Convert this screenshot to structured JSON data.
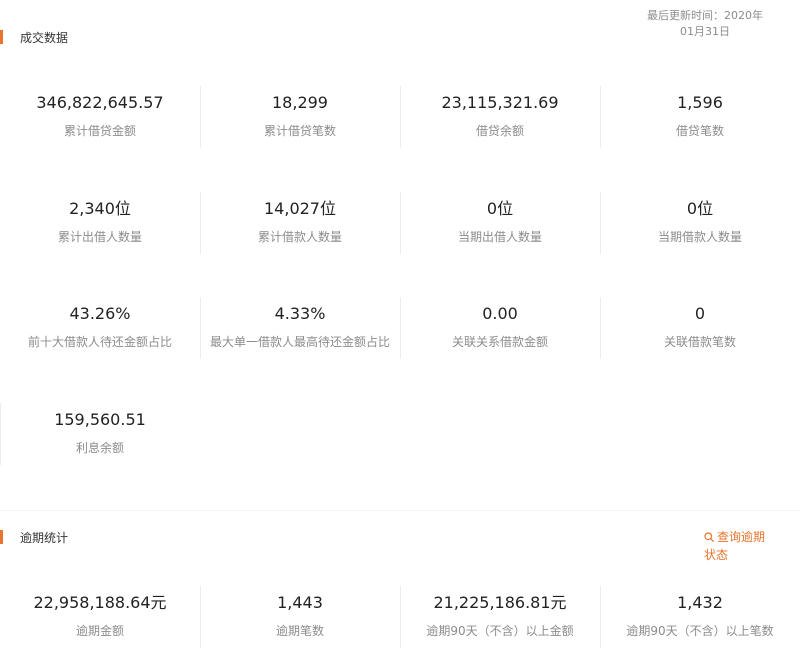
{
  "update_time": {
    "label": "最后更新时间：2020年",
    "date": "01月31日"
  },
  "transactions": {
    "title": "成交数据",
    "rows": [
      [
        {
          "value": "346,822,645.57",
          "label": "累计借贷金额"
        },
        {
          "value": "18,299",
          "label": "累计借贷笔数"
        },
        {
          "value": "23,115,321.69",
          "label": "借贷余额"
        },
        {
          "value": "1,596",
          "label": "借贷笔数"
        }
      ],
      [
        {
          "value": "2,340位",
          "label": "累计出借人数量"
        },
        {
          "value": "14,027位",
          "label": "累计借款人数量"
        },
        {
          "value": "0位",
          "label": "当期出借人数量"
        },
        {
          "value": "0位",
          "label": "当期借款人数量"
        }
      ],
      [
        {
          "value": "43.26%",
          "label": "前十大借款人待还金额占比"
        },
        {
          "value": "4.33%",
          "label": "最大单一借款人最高待还金额占比"
        },
        {
          "value": "0.00",
          "label": "关联关系借款金额"
        },
        {
          "value": "0",
          "label": "关联借款笔数"
        }
      ],
      [
        {
          "value": "159,560.51",
          "label": "利息余额"
        }
      ]
    ]
  },
  "overdue": {
    "title": "逾期统计",
    "query_link_line1": "查询逾期",
    "query_link_line2": "状态",
    "row": [
      {
        "value": "22,958,188.64元",
        "label": "逾期金额"
      },
      {
        "value": "1,443",
        "label": "逾期笔数"
      },
      {
        "value": "21,225,186.81元",
        "label": "逾期90天（不含）以上金额"
      },
      {
        "value": "1,432",
        "label": "逾期90天（不含）以上笔数"
      }
    ]
  },
  "colors": {
    "accent": "#e8742d",
    "label_gray": "#8c8c8c",
    "value_dark": "#222222"
  },
  "icons": {
    "query": "search-icon"
  }
}
